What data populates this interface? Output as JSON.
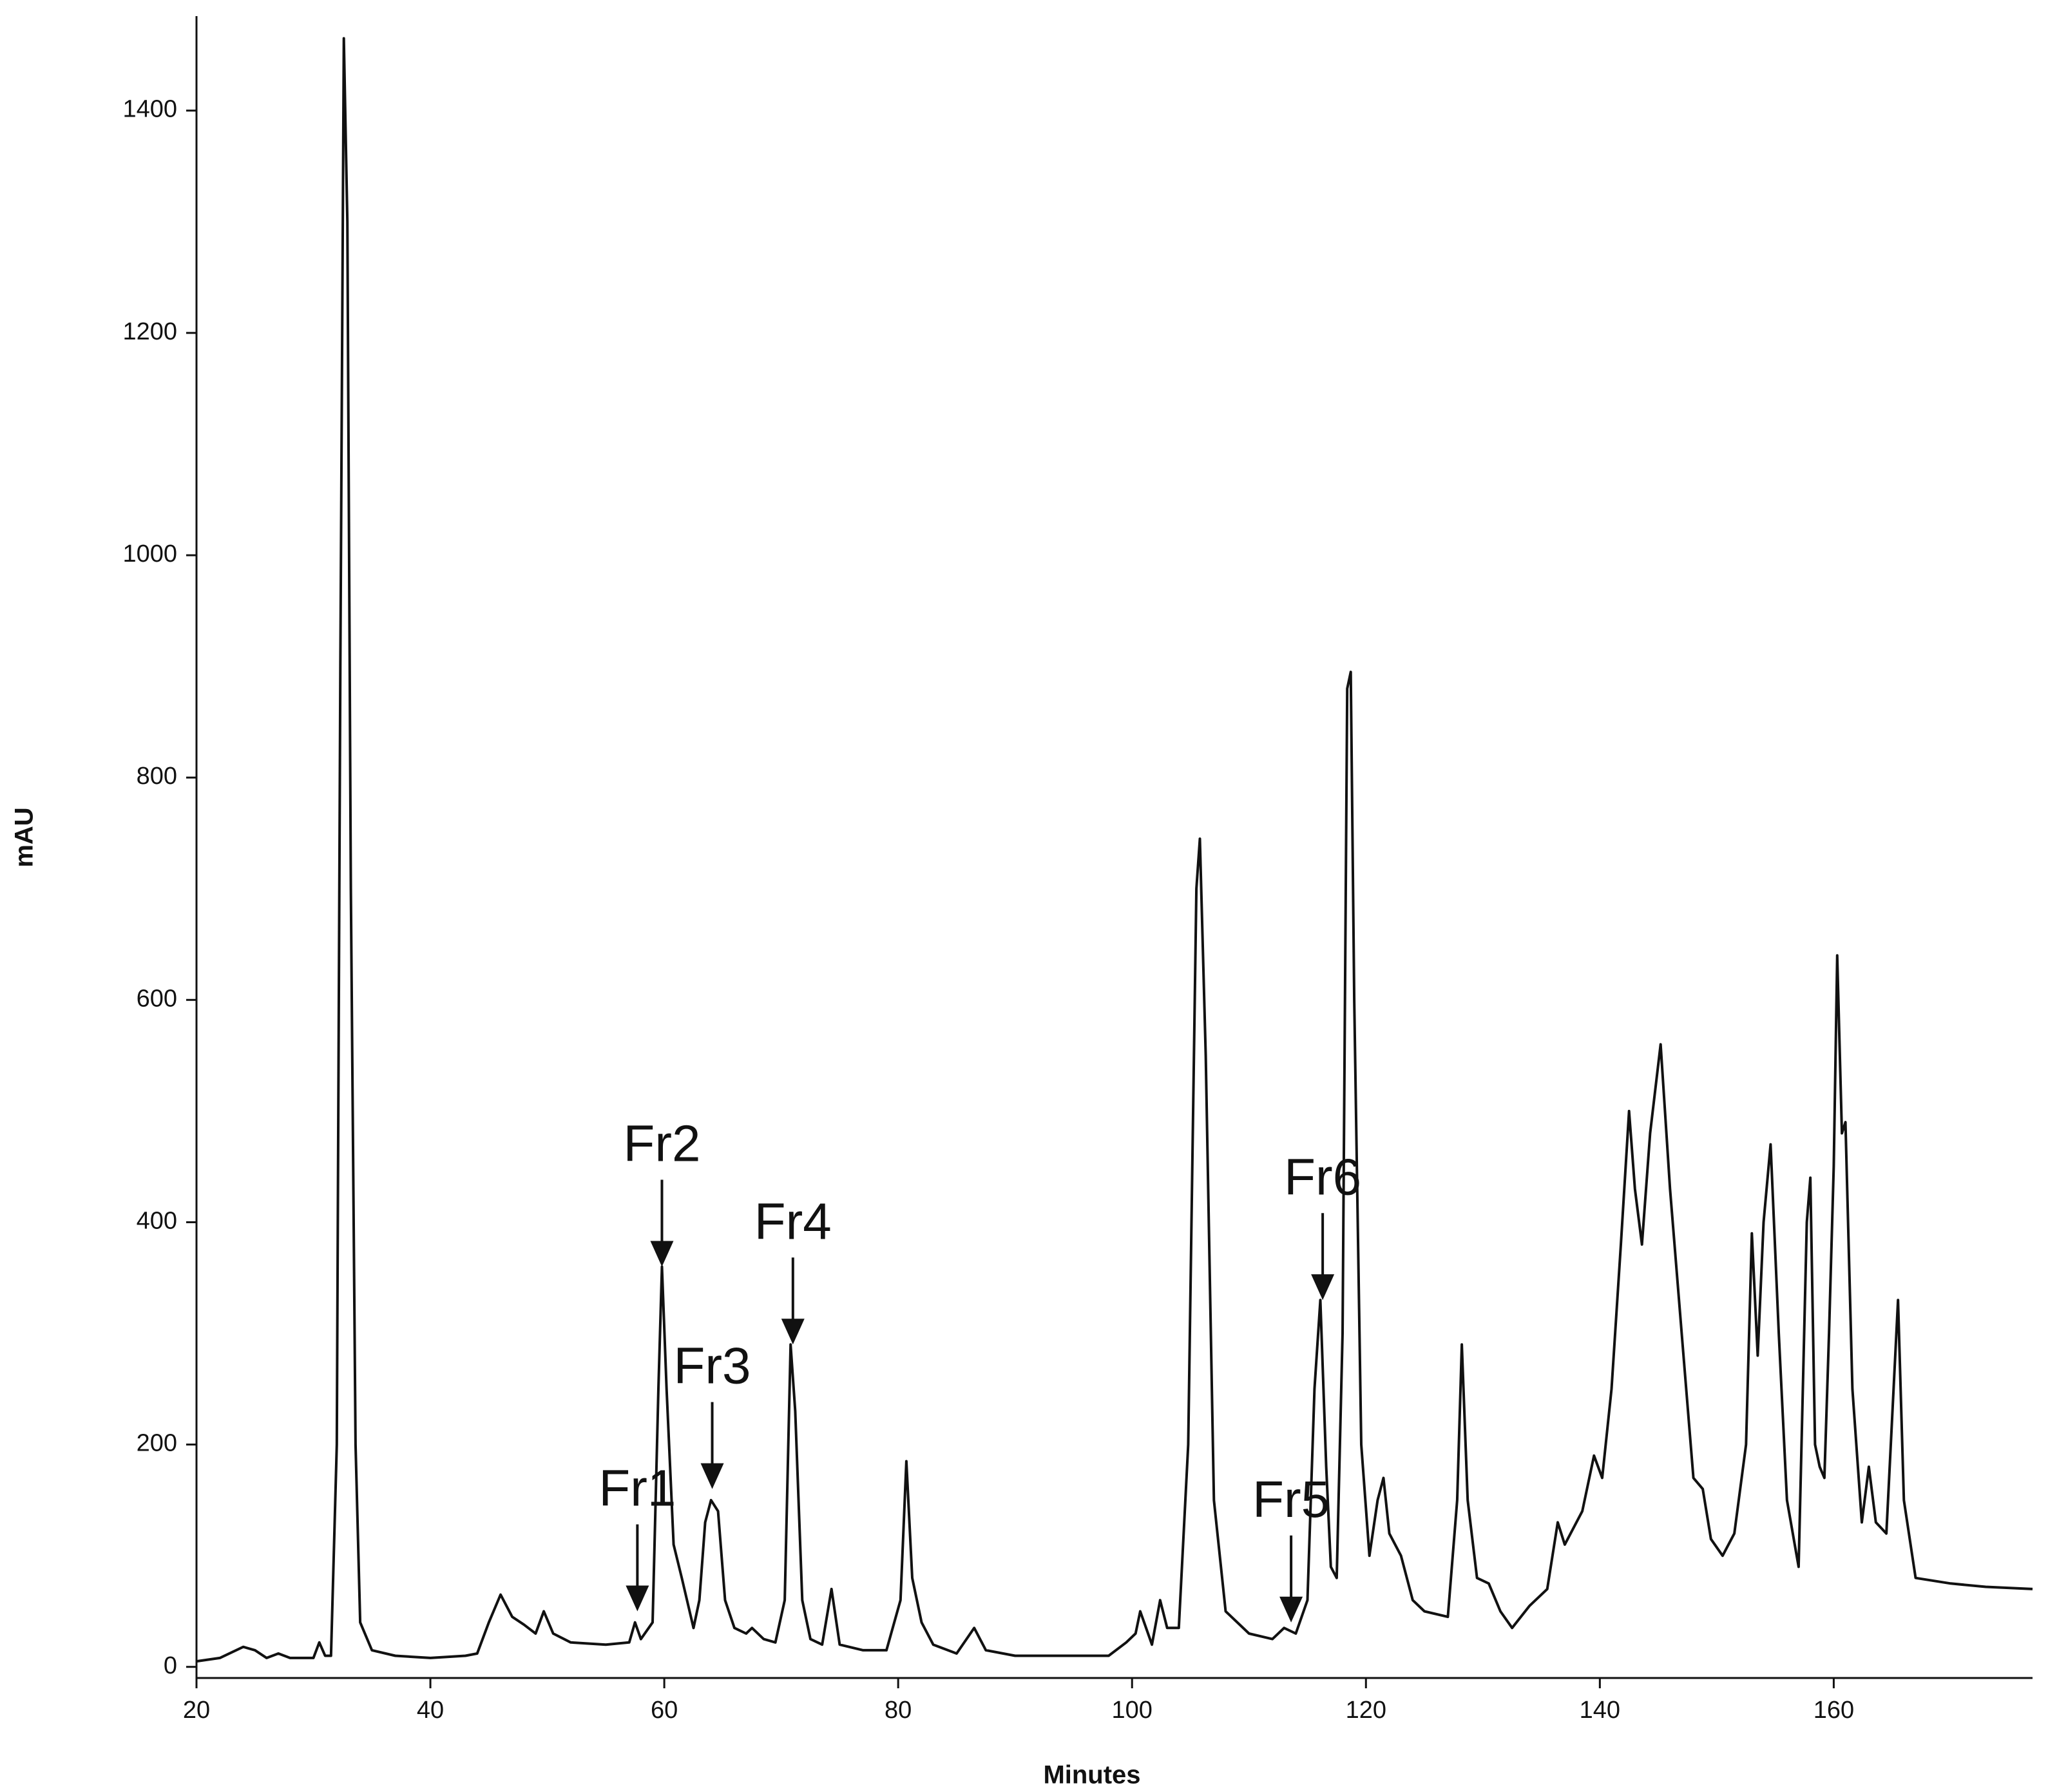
{
  "chart_data": {
    "type": "line",
    "xlabel": "Minutes",
    "ylabel": "mAU",
    "color": "#111111",
    "xlim": [
      20,
      177
    ],
    "ylim": [
      -10,
      1485
    ],
    "xticks": [
      20,
      40,
      60,
      80,
      100,
      120,
      140,
      160
    ],
    "yticks": [
      0,
      200,
      400,
      600,
      800,
      1000,
      1200,
      1400
    ],
    "x": [
      20,
      22,
      24,
      25,
      26,
      27,
      28,
      30,
      30.5,
      31,
      31.5,
      32,
      32.3,
      32.6,
      32.9,
      33.2,
      33.6,
      34,
      35,
      37,
      40,
      43,
      44,
      45,
      46,
      47,
      48,
      49,
      49.7,
      50.5,
      52,
      55,
      57,
      57.5,
      58,
      59,
      59.5,
      59.8,
      60.2,
      60.8,
      61.5,
      62.5,
      63,
      63.5,
      64,
      64.6,
      65.2,
      66,
      67,
      67.5,
      68.5,
      69.5,
      70.3,
      70.8,
      71.2,
      71.8,
      72.5,
      73.5,
      74.3,
      75,
      77,
      79,
      80.2,
      80.7,
      81.2,
      82,
      83,
      85,
      86.5,
      87.5,
      90,
      95,
      98,
      99.5,
      100.3,
      100.7,
      101.2,
      101.7,
      102.4,
      103,
      104,
      104.8,
      105.5,
      105.8,
      106.3,
      107,
      108,
      110,
      112,
      113,
      114,
      115,
      115.6,
      116.1,
      116.6,
      117,
      117.5,
      118,
      118.4,
      118.7,
      119,
      119.6,
      120.3,
      121,
      121.5,
      122,
      123,
      124,
      125,
      127,
      127.8,
      128.2,
      128.7,
      129.5,
      130.5,
      131.5,
      132.5,
      134,
      135.5,
      136.4,
      137,
      138.5,
      139.5,
      140.2,
      141,
      141.8,
      142.5,
      143,
      143.6,
      144.3,
      145.2,
      146,
      147,
      148,
      148.8,
      149.5,
      150.5,
      151.5,
      152.5,
      153,
      153.5,
      154,
      154.6,
      155.3,
      156,
      157,
      157.7,
      158,
      158.4,
      158.8,
      159.2,
      159.6,
      160,
      160.3,
      160.7,
      161,
      161.6,
      162.4,
      163,
      163.6,
      164.5,
      165.5,
      166,
      167,
      170,
      173,
      177
    ],
    "values": [
      5,
      8,
      18,
      15,
      8,
      12,
      8,
      8,
      22,
      10,
      10,
      200,
      900,
      1465,
      1300,
      700,
      200,
      40,
      15,
      10,
      8,
      10,
      12,
      40,
      65,
      45,
      38,
      30,
      50,
      30,
      22,
      20,
      22,
      40,
      25,
      40,
      250,
      360,
      250,
      110,
      80,
      35,
      60,
      130,
      150,
      140,
      60,
      35,
      30,
      35,
      25,
      22,
      60,
      290,
      230,
      60,
      25,
      20,
      70,
      20,
      15,
      15,
      60,
      185,
      80,
      40,
      20,
      12,
      35,
      15,
      10,
      10,
      10,
      22,
      30,
      50,
      35,
      20,
      60,
      35,
      35,
      200,
      700,
      745,
      550,
      150,
      50,
      30,
      25,
      35,
      30,
      60,
      250,
      330,
      180,
      90,
      80,
      300,
      880,
      895,
      600,
      200,
      100,
      150,
      170,
      120,
      100,
      60,
      50,
      45,
      150,
      290,
      150,
      80,
      75,
      50,
      35,
      55,
      70,
      130,
      110,
      140,
      190,
      170,
      250,
      380,
      500,
      430,
      380,
      480,
      560,
      430,
      300,
      170,
      160,
      115,
      100,
      120,
      200,
      390,
      280,
      400,
      470,
      300,
      150,
      90,
      400,
      440,
      200,
      180,
      170,
      300,
      450,
      640,
      480,
      490,
      250,
      130,
      180,
      130,
      120,
      330,
      150,
      80,
      75,
      72,
      70
    ],
    "annotations": [
      {
        "text": "Fr1",
        "x": 57.7,
        "y": 50
      },
      {
        "text": "Fr2",
        "x": 59.8,
        "y": 360
      },
      {
        "text": "Fr3",
        "x": 64.1,
        "y": 160
      },
      {
        "text": "Fr4",
        "x": 71,
        "y": 290
      },
      {
        "text": "Fr5",
        "x": 113.6,
        "y": 40
      },
      {
        "text": "Fr6",
        "x": 116.3,
        "y": 330
      }
    ]
  }
}
